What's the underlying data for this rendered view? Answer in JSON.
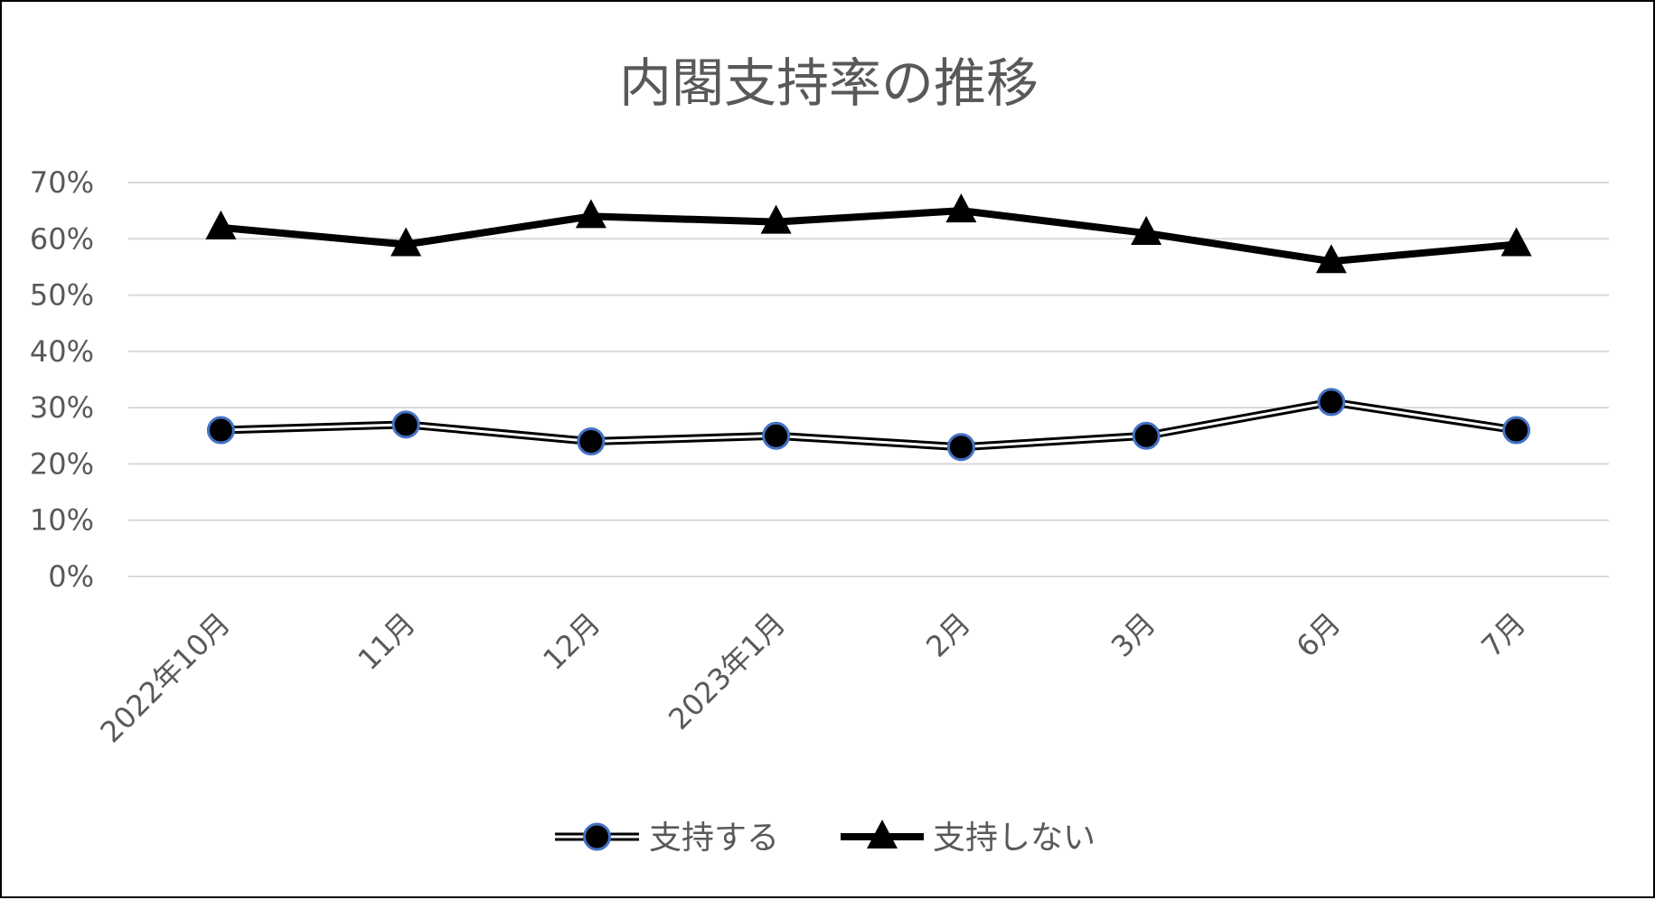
{
  "chart_data": {
    "type": "line",
    "title": "内閣支持率の推移",
    "xlabel": "",
    "ylabel": "",
    "categories": [
      "2022年10月",
      "11月",
      "12月",
      "2023年1月",
      "2月",
      "3月",
      "6月",
      "7月"
    ],
    "y_ticks": [
      "0%",
      "10%",
      "20%",
      "30%",
      "40%",
      "50%",
      "60%",
      "70%"
    ],
    "ylim": [
      0,
      70
    ],
    "grid": true,
    "legend_position": "bottom",
    "series": [
      {
        "name": "支持する",
        "values": [
          26,
          27,
          24,
          25,
          23,
          25,
          31,
          26
        ],
        "line_style": "double",
        "marker": "circle",
        "line_color": "#000000",
        "marker_fill": "#000000",
        "marker_edge": "#4472C4"
      },
      {
        "name": "支持しない",
        "values": [
          62,
          59,
          64,
          63,
          65,
          61,
          56,
          59
        ],
        "line_style": "solid-thick",
        "marker": "triangle",
        "line_color": "#000000",
        "marker_fill": "#000000"
      }
    ],
    "colors": {
      "gridline": "#D9D9D9",
      "text": "#595959",
      "frame": "#000000"
    }
  }
}
